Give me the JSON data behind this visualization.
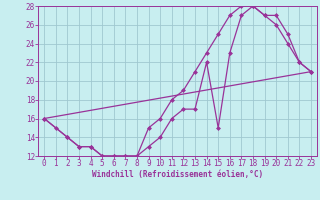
{
  "xlabel": "Windchill (Refroidissement éolien,°C)",
  "bg_color": "#c8eef0",
  "line_color": "#993399",
  "grid_color": "#a0c8d0",
  "xlim": [
    -0.5,
    23.5
  ],
  "ylim": [
    12,
    28
  ],
  "xticks": [
    0,
    1,
    2,
    3,
    4,
    5,
    6,
    7,
    8,
    9,
    10,
    11,
    12,
    13,
    14,
    15,
    16,
    17,
    18,
    19,
    20,
    21,
    22,
    23
  ],
  "yticks": [
    12,
    14,
    16,
    18,
    20,
    22,
    24,
    26,
    28
  ],
  "curve_upper_x": [
    0,
    1,
    2,
    3,
    4,
    5,
    6,
    7,
    8,
    9,
    10,
    11,
    12,
    13,
    14,
    15,
    16,
    17,
    18,
    19,
    20,
    21,
    22,
    23
  ],
  "curve_upper_y": [
    16,
    15,
    14,
    13,
    13,
    12,
    12,
    12,
    12,
    15,
    16,
    18,
    19,
    21,
    23,
    25,
    27,
    28,
    28,
    27,
    26,
    24,
    22,
    21
  ],
  "curve_lower_x": [
    0,
    2,
    3,
    4,
    5,
    6,
    7,
    8,
    9,
    10,
    11,
    12,
    13,
    14,
    15,
    16,
    17,
    18,
    19,
    20,
    21,
    22,
    23
  ],
  "curve_lower_y": [
    16,
    14,
    13,
    13,
    12,
    12,
    12,
    12,
    13,
    14,
    16,
    17,
    17,
    22,
    15,
    23,
    27,
    28,
    27,
    27,
    25,
    22,
    21
  ],
  "line_x": [
    0,
    23
  ],
  "line_y": [
    16,
    21
  ],
  "tick_fontsize": 5.5,
  "label_fontsize": 5.5
}
